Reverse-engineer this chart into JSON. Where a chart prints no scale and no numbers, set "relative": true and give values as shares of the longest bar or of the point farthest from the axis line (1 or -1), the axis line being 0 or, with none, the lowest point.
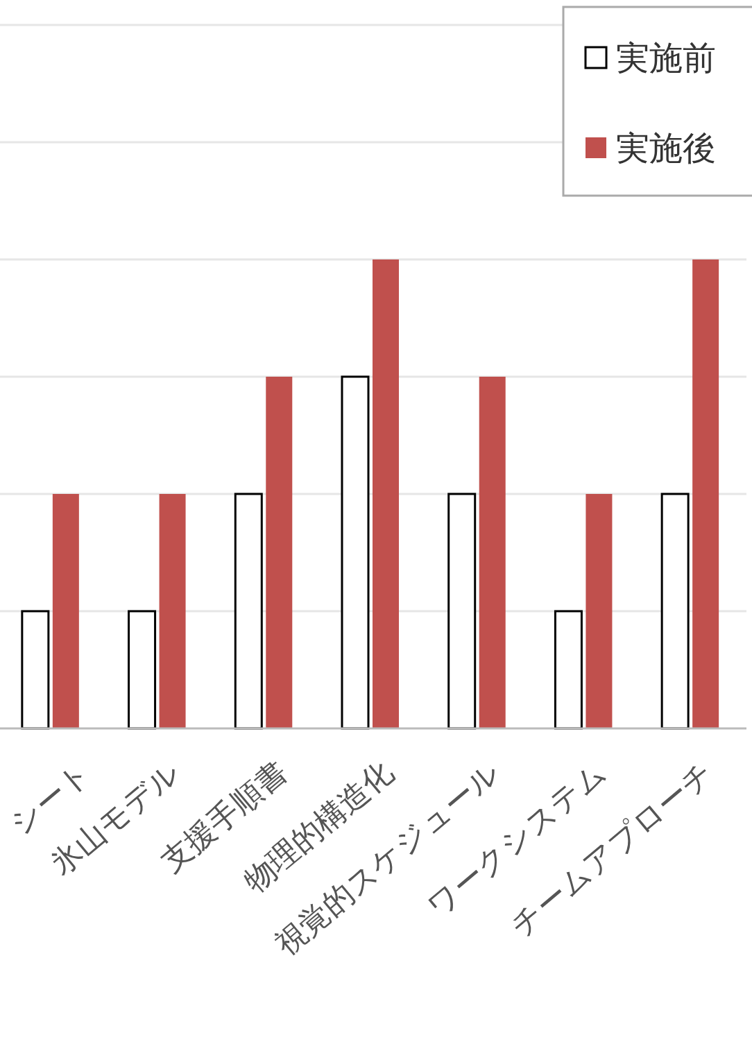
{
  "chart_data": {
    "type": "bar",
    "relative": true,
    "grid": "y",
    "legend": "top right",
    "categories": [
      "シート",
      "氷山モデル",
      "支援手順書",
      "物理的構造化",
      "視覚的スケジュール",
      "ワークシステム",
      "チームアプローチ"
    ],
    "series": [
      {
        "name": "実施前",
        "color": "#ffffff",
        "values": [
          0.25,
          0.25,
          0.5,
          0.75,
          0.5,
          0.25,
          0.5
        ]
      },
      {
        "name": "実施後",
        "color": "#c0504d",
        "values": [
          0.5,
          0.5,
          0.75,
          1,
          0.75,
          0.5,
          1
        ]
      }
    ]
  }
}
